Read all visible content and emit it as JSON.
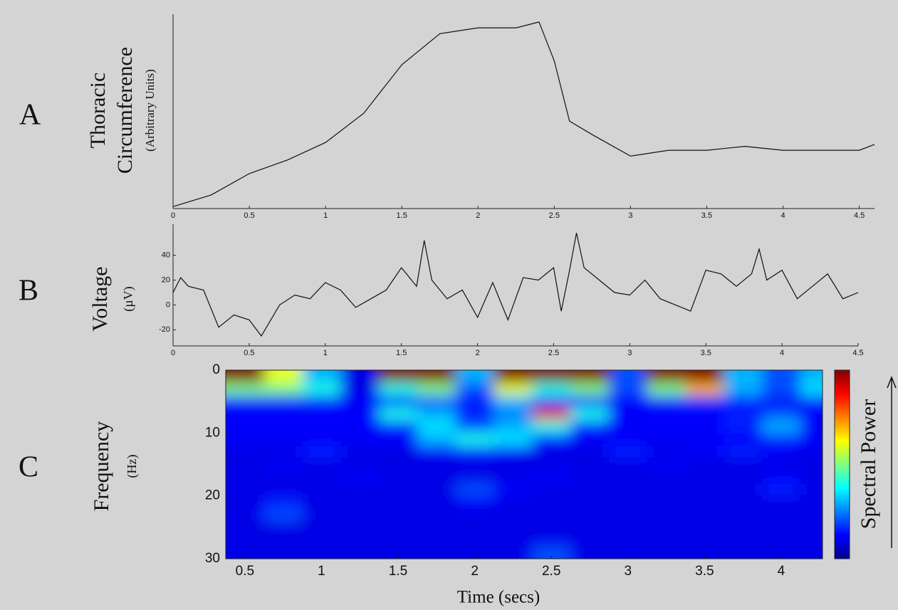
{
  "chart_data": [
    {
      "type": "line",
      "panel_label": "A",
      "ylabel": [
        "Thoracic",
        "Circumference",
        "(Arbitrary Units)"
      ],
      "x": [
        0,
        0.25,
        0.5,
        0.75,
        1,
        1.25,
        1.5,
        1.75,
        2,
        2.25,
        2.4,
        2.5,
        2.6,
        2.75,
        3,
        3.25,
        3.5,
        3.75,
        4,
        4.25,
        4.5,
        4.6
      ],
      "values": [
        1,
        7,
        18,
        25,
        34,
        49,
        74,
        90,
        93,
        93,
        96,
        76,
        45,
        38,
        27,
        30,
        30,
        32,
        30,
        30,
        30,
        33
      ],
      "color": "#111111",
      "xlim": [
        0,
        4.6
      ],
      "ylim": [
        0,
        100
      ],
      "xticks": [
        0,
        0.5,
        1,
        1.5,
        2,
        2.5,
        3,
        3.5,
        4,
        4.5
      ]
    },
    {
      "type": "line",
      "panel_label": "B",
      "ylabel": [
        "Voltage",
        "(µV)"
      ],
      "x": [
        0,
        0.05,
        0.1,
        0.2,
        0.3,
        0.4,
        0.5,
        0.58,
        0.7,
        0.8,
        0.9,
        1,
        1.1,
        1.2,
        1.3,
        1.4,
        1.5,
        1.6,
        1.65,
        1.7,
        1.8,
        1.9,
        2,
        2.1,
        2.2,
        2.3,
        2.4,
        2.5,
        2.55,
        2.6,
        2.65,
        2.7,
        2.8,
        2.9,
        3,
        3.1,
        3.2,
        3.3,
        3.4,
        3.5,
        3.6,
        3.7,
        3.8,
        3.85,
        3.9,
        4,
        4.1,
        4.2,
        4.3,
        4.4,
        4.5
      ],
      "values": [
        10,
        22,
        15,
        12,
        -18,
        -8,
        -12,
        -25,
        0,
        8,
        5,
        18,
        12,
        -2,
        5,
        12,
        30,
        15,
        52,
        20,
        5,
        12,
        -10,
        18,
        -12,
        22,
        20,
        30,
        -5,
        25,
        58,
        30,
        20,
        10,
        8,
        20,
        5,
        0,
        -5,
        28,
        25,
        15,
        25,
        45,
        20,
        28,
        5,
        15,
        25,
        5,
        10
      ],
      "color": "#111111",
      "xlim": [
        0,
        4.5
      ],
      "ylim": [
        -33,
        65
      ],
      "xticks": [
        0,
        0.5,
        1,
        1.5,
        2,
        2.5,
        3,
        3.5,
        4,
        4.5
      ],
      "yticks": [
        -20,
        0,
        20,
        40
      ]
    },
    {
      "type": "heatmap",
      "panel_label": "C",
      "ylabel": [
        "Frequency",
        "(Hz)"
      ],
      "xlabel": "Time (secs)",
      "colorbar_label": "Spectral Power",
      "x": [
        0.5,
        0.75,
        1,
        1.25,
        1.5,
        1.75,
        2,
        2.25,
        2.5,
        2.75,
        3,
        3.25,
        3.5,
        3.75,
        4,
        4.25
      ],
      "y": [
        1,
        3,
        5,
        7,
        9,
        11,
        13,
        15,
        17,
        19,
        21,
        23,
        25,
        27,
        29
      ],
      "z": [
        [
          1,
          0.6,
          0.3,
          0.1,
          1,
          1,
          0.3,
          1,
          1,
          1,
          0.2,
          1,
          1,
          0.3,
          0.2,
          0.3
        ],
        [
          0.5,
          0.5,
          0.4,
          0.1,
          0.4,
          0.5,
          0.2,
          0.6,
          0.4,
          0.5,
          0.2,
          0.5,
          0.7,
          0.3,
          0.2,
          0.35
        ],
        [
          0.15,
          0.15,
          0.15,
          0.12,
          0.15,
          0.2,
          0.15,
          0.3,
          0.2,
          0.15,
          0.12,
          0.15,
          0.15,
          0.15,
          0.12,
          0.15
        ],
        [
          0.12,
          0.12,
          0.12,
          0.12,
          0.4,
          0.3,
          0.15,
          0.25,
          0.9,
          0.4,
          0.12,
          0.12,
          0.12,
          0.15,
          0.2,
          0.12
        ],
        [
          0.12,
          0.12,
          0.12,
          0.12,
          0.15,
          0.35,
          0.2,
          0.3,
          0.4,
          0.15,
          0.12,
          0.12,
          0.12,
          0.15,
          0.3,
          0.12
        ],
        [
          0.12,
          0.12,
          0.12,
          0.12,
          0.12,
          0.3,
          0.4,
          0.35,
          0.15,
          0.12,
          0.12,
          0.12,
          0.12,
          0.12,
          0.15,
          0.12
        ],
        [
          0.1,
          0.1,
          0.15,
          0.1,
          0.1,
          0.12,
          0.15,
          0.12,
          0.1,
          0.1,
          0.15,
          0.1,
          0.12,
          0.15,
          0.12,
          0.1
        ],
        [
          0.1,
          0.12,
          0.1,
          0.1,
          0.1,
          0.1,
          0.1,
          0.1,
          0.1,
          0.1,
          0.1,
          0.12,
          0.1,
          0.1,
          0.1,
          0.1
        ],
        [
          0.1,
          0.1,
          0.1,
          0.12,
          0.1,
          0.1,
          0.1,
          0.1,
          0.12,
          0.1,
          0.1,
          0.1,
          0.1,
          0.1,
          0.12,
          0.1
        ],
        [
          0.1,
          0.1,
          0.1,
          0.1,
          0.1,
          0.1,
          0.2,
          0.12,
          0.1,
          0.1,
          0.1,
          0.1,
          0.1,
          0.1,
          0.15,
          0.1
        ],
        [
          0.1,
          0.15,
          0.1,
          0.1,
          0.1,
          0.1,
          0.12,
          0.1,
          0.1,
          0.1,
          0.1,
          0.1,
          0.1,
          0.1,
          0.1,
          0.1
        ],
        [
          0.1,
          0.2,
          0.1,
          0.1,
          0.1,
          0.1,
          0.1,
          0.1,
          0.1,
          0.1,
          0.1,
          0.1,
          0.1,
          0.1,
          0.1,
          0.1
        ],
        [
          0.1,
          0.1,
          0.1,
          0.1,
          0.1,
          0.1,
          0.1,
          0.1,
          0.1,
          0.1,
          0.1,
          0.1,
          0.1,
          0.1,
          0.1,
          0.1
        ],
        [
          0.1,
          0.1,
          0.1,
          0.1,
          0.1,
          0.1,
          0.1,
          0.1,
          0.1,
          0.1,
          0.1,
          0.1,
          0.1,
          0.1,
          0.1,
          0.1
        ],
        [
          0.1,
          0.1,
          0.1,
          0.1,
          0.1,
          0.1,
          0.1,
          0.1,
          0.2,
          0.1,
          0.1,
          0.1,
          0.1,
          0.1,
          0.1,
          0.1
        ]
      ],
      "zlim": [
        0,
        1
      ],
      "xlim": [
        0.375,
        4.27
      ],
      "ylim": [
        30,
        0
      ],
      "xticks": [
        0.5,
        1,
        1.5,
        2,
        2.5,
        3,
        3.5,
        4
      ],
      "yticks": [
        0,
        10,
        20,
        30
      ]
    }
  ]
}
